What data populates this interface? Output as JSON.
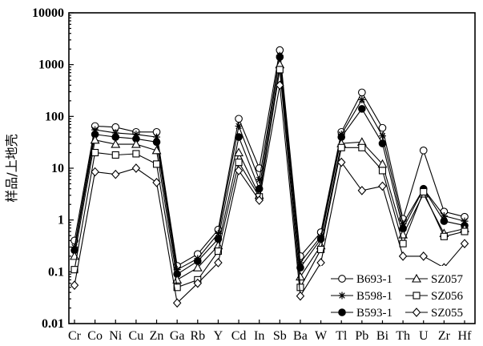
{
  "chart_data": {
    "type": "line",
    "ylabel": "样品/上地壳",
    "yscale": "log",
    "ylim": [
      0.01,
      10000
    ],
    "yticks": [
      "0.01",
      "0.1",
      "1",
      "10",
      "100",
      "1000",
      "10000"
    ],
    "categories": [
      "Cr",
      "Co",
      "Ni",
      "Cu",
      "Zn",
      "Ga",
      "Rb",
      "Y",
      "Cd",
      "In",
      "Sb",
      "Ba",
      "W",
      "Tl",
      "Pb",
      "Bi",
      "Th",
      "U",
      "Zr",
      "Hf"
    ],
    "legend_position": "bottom-right",
    "series": [
      {
        "name": "B693-1",
        "marker": "circle-open",
        "values": [
          0.4,
          65,
          62,
          50,
          50,
          0.13,
          0.22,
          0.65,
          90,
          10,
          1900,
          0.2,
          0.58,
          50,
          290,
          60,
          1.05,
          22,
          1.45,
          1.15
        ]
      },
      {
        "name": "B598-1",
        "marker": "star",
        "values": [
          0.3,
          55,
          48,
          45,
          40,
          0.11,
          0.18,
          0.55,
          65,
          6,
          1500,
          0.15,
          0.48,
          45,
          210,
          42,
          0.85,
          4,
          1.2,
          0.95
        ]
      },
      {
        "name": "B593-1",
        "marker": "circle-filled",
        "values": [
          0.26,
          45,
          40,
          37,
          32,
          0.09,
          0.16,
          0.43,
          40,
          4,
          1400,
          0.12,
          0.43,
          40,
          140,
          30,
          0.68,
          4,
          0.95,
          0.78
        ]
      },
      {
        "name": "SZ057",
        "marker": "triangle-open",
        "values": [
          0.2,
          35,
          29,
          29,
          22,
          0.07,
          0.12,
          0.32,
          20,
          3,
          1000,
          0.08,
          0.32,
          30,
          32,
          12,
          0.52,
          3.2,
          0.55,
          0.68
        ]
      },
      {
        "name": "SZ056",
        "marker": "square-open",
        "values": [
          0.11,
          20,
          18,
          19,
          12,
          0.05,
          0.07,
          0.25,
          13,
          2.8,
          800,
          0.05,
          0.27,
          25,
          25,
          9,
          0.35,
          3.5,
          0.48,
          0.6
        ]
      },
      {
        "name": "SZ055",
        "marker": "diamond-open",
        "values": [
          0.055,
          8.5,
          7.6,
          10,
          5.3,
          0.025,
          0.06,
          0.15,
          9,
          2.4,
          400,
          0.034,
          0.15,
          13,
          3.7,
          4.5,
          0.2,
          0.2,
          0.12,
          0.35
        ]
      }
    ]
  }
}
